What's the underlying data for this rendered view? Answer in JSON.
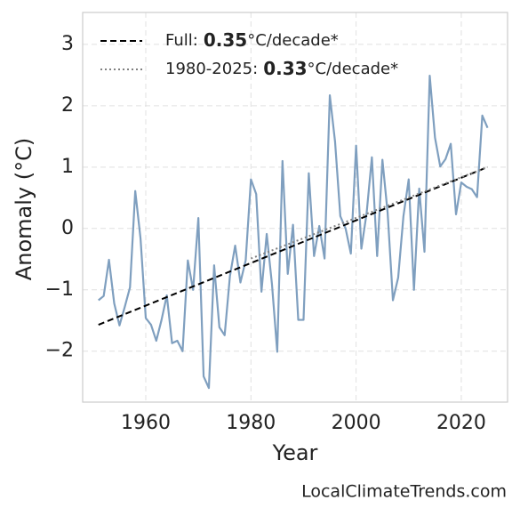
{
  "chart_data": {
    "type": "line",
    "x_label": "Year",
    "y_label": "Anomaly (°C)",
    "watermark": "LocalClimateTrends.com",
    "xlim": [
      1948,
      2028.8
    ],
    "ylim": [
      -2.83,
      3.52
    ],
    "xticks": [
      1960,
      1980,
      2000,
      2020
    ],
    "yticks": [
      {
        "value": -2,
        "label": "−2"
      },
      {
        "value": -1,
        "label": "−1"
      },
      0,
      1,
      2,
      3
    ],
    "grid": true,
    "legend": "upper left",
    "series": [
      {
        "name": "Anomaly",
        "color": "#7f9fbf",
        "x": [
          1951,
          1952,
          1953,
          1954,
          1955,
          1956,
          1957,
          1958,
          1959,
          1960,
          1961,
          1962,
          1963,
          1964,
          1965,
          1966,
          1967,
          1968,
          1969,
          1970,
          1971,
          1972,
          1973,
          1974,
          1975,
          1976,
          1977,
          1978,
          1979,
          1980,
          1981,
          1982,
          1983,
          1984,
          1985,
          1986,
          1987,
          1988,
          1989,
          1990,
          1991,
          1992,
          1993,
          1994,
          1995,
          1996,
          1997,
          1998,
          1999,
          2000,
          2001,
          2002,
          2003,
          2004,
          2005,
          2006,
          2007,
          2008,
          2009,
          2010,
          2011,
          2012,
          2013,
          2014,
          2015,
          2016,
          2017,
          2018,
          2019,
          2020,
          2021,
          2022,
          2023,
          2024,
          2025
        ],
        "values": [
          -1.17,
          -1.1,
          -0.51,
          -1.22,
          -1.58,
          -1.28,
          -0.96,
          0.61,
          -0.16,
          -1.46,
          -1.57,
          -1.83,
          -1.49,
          -1.09,
          -1.87,
          -1.83,
          -2.0,
          -0.52,
          -1.0,
          0.17,
          -2.41,
          -2.6,
          -0.6,
          -1.61,
          -1.74,
          -0.78,
          -0.28,
          -0.88,
          -0.52,
          0.8,
          0.56,
          -1.03,
          -0.09,
          -0.91,
          -2.01,
          1.1,
          -0.74,
          0.06,
          -1.49,
          -1.49,
          0.9,
          -0.45,
          0.04,
          -0.49,
          2.17,
          1.41,
          0.2,
          0.0,
          -0.41,
          1.35,
          -0.33,
          0.25,
          1.16,
          -0.45,
          1.12,
          0.25,
          -1.17,
          -0.8,
          0.2,
          0.8,
          -1.0,
          0.65,
          -0.38,
          2.49,
          1.48,
          1.01,
          1.13,
          1.38,
          0.23,
          0.75,
          0.68,
          0.64,
          0.51,
          1.84,
          1.64
        ]
      }
    ],
    "trends": [
      {
        "name": "Full:",
        "slope": 0.35,
        "unit": "°C/decade*",
        "color": "#000000",
        "dash": "7,4",
        "x": [
          1951,
          2025
        ],
        "values": [
          -1.57,
          1.0
        ]
      },
      {
        "name": "1980-2025:",
        "slope": 0.33,
        "unit": "°C/decade*",
        "color": "#808080",
        "dash": "2,3",
        "x": [
          1980,
          2025
        ],
        "values": [
          -0.49,
          1.0
        ]
      }
    ]
  }
}
